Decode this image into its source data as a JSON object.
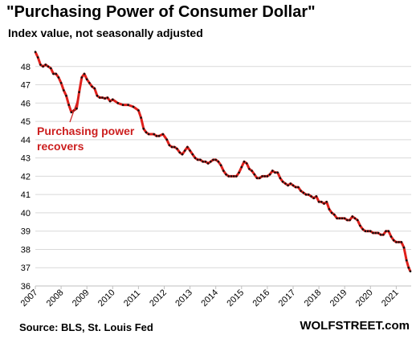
{
  "chart_data": {
    "type": "line",
    "title": "\"Purchasing Power of Consumer Dollar\"",
    "subtitle": "Index value, not seasonally adjusted",
    "source": "Source: BLS, St. Louis Fed",
    "brand": "WOLFSTREET.com",
    "annotation": [
      "Purchasing power",
      "recovers"
    ],
    "xlim": [
      2007,
      2021.58
    ],
    "ylim": [
      36,
      49
    ],
    "y_ticks": [
      36,
      37,
      38,
      39,
      40,
      41,
      42,
      43,
      44,
      45,
      46,
      47,
      48
    ],
    "x_ticks": [
      "2007",
      "2008",
      "2009",
      "2010",
      "2011",
      "2012",
      "2013",
      "2014",
      "2015",
      "2016",
      "2017",
      "2018",
      "2019",
      "2020",
      "2021"
    ],
    "grid": true,
    "series": [
      {
        "line_color": "#e0201b",
        "marker_color": "#111111",
        "points": [
          [
            2007.0,
            48.8
          ],
          [
            2007.1,
            48.5
          ],
          [
            2007.2,
            48.1
          ],
          [
            2007.3,
            48.0
          ],
          [
            2007.4,
            48.1
          ],
          [
            2007.5,
            48.0
          ],
          [
            2007.6,
            47.9
          ],
          [
            2007.7,
            47.6
          ],
          [
            2007.8,
            47.6
          ],
          [
            2007.9,
            47.4
          ],
          [
            2008.0,
            47.1
          ],
          [
            2008.1,
            46.7
          ],
          [
            2008.2,
            46.4
          ],
          [
            2008.3,
            45.9
          ],
          [
            2008.4,
            45.5
          ],
          [
            2008.5,
            45.6
          ],
          [
            2008.6,
            45.7
          ],
          [
            2008.7,
            46.6
          ],
          [
            2008.8,
            47.4
          ],
          [
            2008.9,
            47.6
          ],
          [
            2009.0,
            47.3
          ],
          [
            2009.1,
            47.1
          ],
          [
            2009.2,
            46.9
          ],
          [
            2009.3,
            46.8
          ],
          [
            2009.4,
            46.4
          ],
          [
            2009.5,
            46.3
          ],
          [
            2009.6,
            46.3
          ],
          [
            2009.7,
            46.25
          ],
          [
            2009.8,
            46.3
          ],
          [
            2009.9,
            46.1
          ],
          [
            2010.0,
            46.2
          ],
          [
            2010.2,
            46.0
          ],
          [
            2010.4,
            45.9
          ],
          [
            2010.6,
            45.9
          ],
          [
            2010.8,
            45.8
          ],
          [
            2011.0,
            45.6
          ],
          [
            2011.1,
            45.2
          ],
          [
            2011.2,
            44.6
          ],
          [
            2011.3,
            44.4
          ],
          [
            2011.4,
            44.3
          ],
          [
            2011.6,
            44.3
          ],
          [
            2011.7,
            44.2
          ],
          [
            2011.8,
            44.2
          ],
          [
            2011.95,
            44.3
          ],
          [
            2012.1,
            44.0
          ],
          [
            2012.2,
            43.7
          ],
          [
            2012.3,
            43.6
          ],
          [
            2012.4,
            43.6
          ],
          [
            2012.5,
            43.5
          ],
          [
            2012.6,
            43.3
          ],
          [
            2012.7,
            43.2
          ],
          [
            2012.8,
            43.4
          ],
          [
            2012.9,
            43.6
          ],
          [
            2013.0,
            43.4
          ],
          [
            2013.1,
            43.2
          ],
          [
            2013.2,
            43.0
          ],
          [
            2013.3,
            42.9
          ],
          [
            2013.4,
            42.9
          ],
          [
            2013.5,
            42.8
          ],
          [
            2013.6,
            42.8
          ],
          [
            2013.7,
            42.7
          ],
          [
            2013.8,
            42.8
          ],
          [
            2013.9,
            42.9
          ],
          [
            2014.0,
            42.9
          ],
          [
            2014.1,
            42.8
          ],
          [
            2014.2,
            42.6
          ],
          [
            2014.3,
            42.3
          ],
          [
            2014.4,
            42.1
          ],
          [
            2014.5,
            42.0
          ],
          [
            2014.6,
            42.0
          ],
          [
            2014.7,
            42.0
          ],
          [
            2014.8,
            42.0
          ],
          [
            2014.9,
            42.2
          ],
          [
            2015.0,
            42.5
          ],
          [
            2015.1,
            42.8
          ],
          [
            2015.2,
            42.7
          ],
          [
            2015.3,
            42.4
          ],
          [
            2015.4,
            42.3
          ],
          [
            2015.5,
            42.1
          ],
          [
            2015.6,
            41.9
          ],
          [
            2015.7,
            41.9
          ],
          [
            2015.8,
            42.0
          ],
          [
            2015.9,
            42.0
          ],
          [
            2016.0,
            42.0
          ],
          [
            2016.1,
            42.1
          ],
          [
            2016.2,
            42.3
          ],
          [
            2016.3,
            42.2
          ],
          [
            2016.4,
            42.2
          ],
          [
            2016.5,
            41.9
          ],
          [
            2016.6,
            41.7
          ],
          [
            2016.7,
            41.6
          ],
          [
            2016.8,
            41.5
          ],
          [
            2016.9,
            41.6
          ],
          [
            2017.0,
            41.5
          ],
          [
            2017.1,
            41.4
          ],
          [
            2017.2,
            41.4
          ],
          [
            2017.3,
            41.2
          ],
          [
            2017.4,
            41.1
          ],
          [
            2017.5,
            41.0
          ],
          [
            2017.6,
            41.0
          ],
          [
            2017.7,
            40.9
          ],
          [
            2017.8,
            40.8
          ],
          [
            2017.9,
            40.9
          ],
          [
            2018.0,
            40.6
          ],
          [
            2018.1,
            40.6
          ],
          [
            2018.2,
            40.5
          ],
          [
            2018.3,
            40.6
          ],
          [
            2018.4,
            40.2
          ],
          [
            2018.5,
            40.0
          ],
          [
            2018.6,
            39.9
          ],
          [
            2018.7,
            39.7
          ],
          [
            2018.8,
            39.7
          ],
          [
            2018.9,
            39.7
          ],
          [
            2019.0,
            39.7
          ],
          [
            2019.1,
            39.6
          ],
          [
            2019.2,
            39.6
          ],
          [
            2019.3,
            39.8
          ],
          [
            2019.4,
            39.7
          ],
          [
            2019.5,
            39.6
          ],
          [
            2019.6,
            39.3
          ],
          [
            2019.7,
            39.1
          ],
          [
            2019.8,
            39.0
          ],
          [
            2019.9,
            39.0
          ],
          [
            2020.0,
            39.0
          ],
          [
            2020.1,
            38.9
          ],
          [
            2020.2,
            38.9
          ],
          [
            2020.3,
            38.9
          ],
          [
            2020.4,
            38.8
          ],
          [
            2020.5,
            38.8
          ],
          [
            2020.6,
            39.0
          ],
          [
            2020.7,
            39.0
          ],
          [
            2020.8,
            38.7
          ],
          [
            2020.9,
            38.5
          ],
          [
            2021.0,
            38.4
          ],
          [
            2021.1,
            38.4
          ],
          [
            2021.2,
            38.4
          ],
          [
            2021.3,
            38.1
          ],
          [
            2021.4,
            37.4
          ],
          [
            2021.48,
            37.0
          ],
          [
            2021.55,
            36.8
          ]
        ]
      }
    ]
  }
}
